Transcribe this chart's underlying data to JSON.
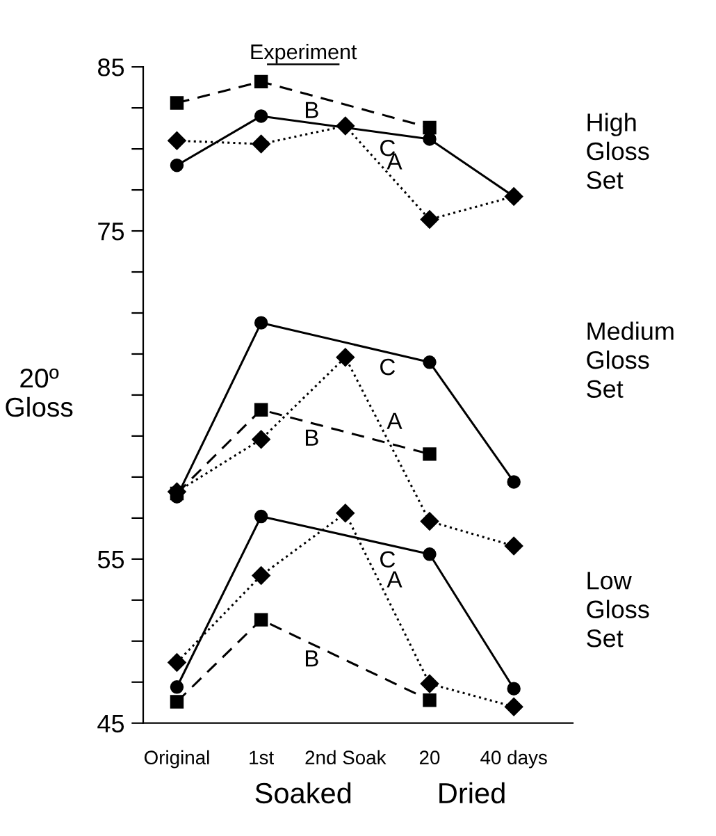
{
  "chart_data": {
    "type": "line",
    "ylabel": "20º\nGloss",
    "categories": [
      "Original",
      "1st",
      "2nd Soak",
      "20",
      "40 days"
    ],
    "ylim": [
      45,
      85
    ],
    "yticks": [
      45,
      {
        "value": 47.5,
        "label": null
      },
      {
        "value": 50,
        "label": null
      },
      {
        "value": 52.5,
        "label": null
      },
      55,
      {
        "value": 57.5,
        "label": null
      },
      {
        "value": 60,
        "label": null
      },
      {
        "value": 62.5,
        "label": null
      },
      {
        "value": 65,
        "label": null
      },
      {
        "value": 67.5,
        "label": null
      },
      {
        "value": 70,
        "label": null
      },
      {
        "value": 72.5,
        "label": null
      },
      75,
      {
        "value": 77.5,
        "label": null
      },
      {
        "value": 80,
        "label": null
      },
      {
        "value": 82.5,
        "label": null
      },
      85
    ],
    "grid": false,
    "legend": false,
    "annotations": [
      "Experiment",
      "Soaked",
      "Dried",
      "High\nGloss\nSet",
      "Medium\nGloss\nSet",
      "Low\nGloss\nSet"
    ],
    "series": [
      {
        "name": "B",
        "color": "#000000",
        "marker": "square",
        "line_style": "dashed",
        "values": [
          82.8,
          84.1,
          null,
          81.3,
          null
        ]
      },
      {
        "name": "C",
        "color": "#000000",
        "marker": "circle",
        "line_style": "solid",
        "values": [
          79.0,
          82.0,
          null,
          80.6,
          77.1
        ]
      },
      {
        "name": "A",
        "color": "#000000",
        "marker": "diamond",
        "line_style": "dotted",
        "values": [
          80.5,
          80.3,
          81.4,
          75.7,
          77.1
        ]
      },
      {
        "name": "C",
        "color": "#000000",
        "marker": "circle",
        "line_style": "solid",
        "values": [
          58.8,
          69.4,
          null,
          67.0,
          59.7
        ]
      },
      {
        "name": "A",
        "color": "#000000",
        "marker": "diamond",
        "line_style": "dotted",
        "values": [
          59.1,
          62.3,
          67.3,
          57.3,
          55.8
        ]
      },
      {
        "name": "B",
        "color": "#000000",
        "marker": "square",
        "line_style": "dashed",
        "values": [
          59.0,
          64.1,
          null,
          61.4,
          null
        ]
      },
      {
        "name": "C",
        "color": "#000000",
        "marker": "circle",
        "line_style": "solid",
        "values": [
          47.2,
          57.6,
          null,
          55.3,
          47.1
        ]
      },
      {
        "name": "A",
        "color": "#000000",
        "marker": "diamond",
        "line_style": "dotted",
        "values": [
          48.7,
          54.0,
          57.8,
          47.4,
          46.0
        ]
      },
      {
        "name": "B",
        "color": "#000000",
        "marker": "square",
        "line_style": "dashed",
        "values": [
          46.3,
          51.3,
          null,
          46.4,
          null
        ]
      }
    ]
  }
}
